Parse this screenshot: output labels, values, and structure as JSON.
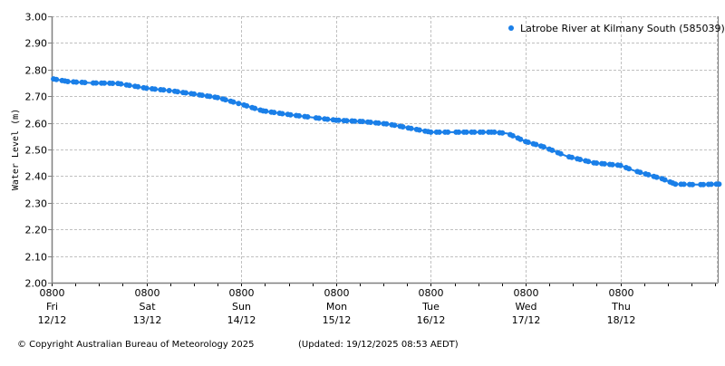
{
  "chart_data": {
    "type": "line",
    "title": "",
    "xlabel": "",
    "ylabel": "Water Level (m)",
    "ylim": [
      2.0,
      3.0
    ],
    "yticks": [
      "2.00",
      "2.10",
      "2.20",
      "2.30",
      "2.40",
      "2.50",
      "2.60",
      "2.70",
      "2.80",
      "2.90",
      "3.00"
    ],
    "xticks": [
      {
        "time": "0800",
        "day": "Fri",
        "date": "12/12"
      },
      {
        "time": "0800",
        "day": "Sat",
        "date": "13/12"
      },
      {
        "time": "0800",
        "day": "Sun",
        "date": "14/12"
      },
      {
        "time": "0800",
        "day": "Mon",
        "date": "15/12"
      },
      {
        "time": "0800",
        "day": "Tue",
        "date": "16/12"
      },
      {
        "time": "0800",
        "day": "Wed",
        "date": "17/12"
      },
      {
        "time": "0800",
        "day": "Thu",
        "date": "18/12"
      }
    ],
    "grid": true,
    "legend_position": "top-right",
    "series": [
      {
        "name": "Latrobe River at Kilmany South (585039)",
        "color": "#1a7fe8",
        "x_days_from_fri_0800": [
          0.02,
          0.17,
          0.41,
          0.7,
          1.0,
          1.27,
          1.56,
          1.75,
          2.0,
          2.23,
          2.52,
          2.76,
          3.0,
          3.28,
          3.56,
          3.85,
          4.0,
          4.24,
          4.43,
          4.67,
          4.81,
          5.0,
          5.19,
          5.43,
          5.72,
          6.0,
          6.15,
          6.44,
          6.58,
          6.82,
          7.04
        ],
        "values": [
          2.765,
          2.755,
          2.75,
          2.748,
          2.73,
          2.72,
          2.705,
          2.695,
          2.67,
          2.645,
          2.63,
          2.62,
          2.61,
          2.605,
          2.595,
          2.575,
          2.565,
          2.565,
          2.565,
          2.565,
          2.56,
          2.53,
          2.51,
          2.475,
          2.45,
          2.44,
          2.42,
          2.39,
          2.37,
          2.368,
          2.37
        ]
      }
    ]
  },
  "legend": {
    "label": "Latrobe River at Kilmany South (585039)"
  },
  "colors": {
    "series": "#1a7fe8",
    "axis": "#808080",
    "grid": "#c0c0c0"
  },
  "footer": {
    "copyright": "© Copyright Australian Bureau of Meteorology 2025",
    "updated": "(Updated: 19/12/2025 08:53 AEDT)"
  }
}
